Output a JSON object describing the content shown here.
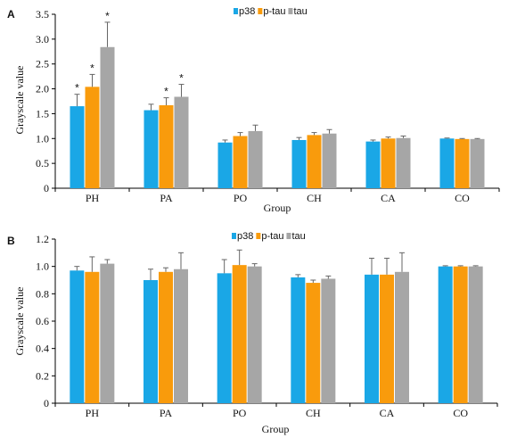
{
  "chart_data": [
    {
      "type": "bar",
      "panel_label": "A",
      "xlabel": "Group",
      "ylabel": "Grayscale value",
      "ylim": [
        0,
        3.5
      ],
      "yticks": [
        "0",
        "0.5",
        "1.0",
        "1.5",
        "2.0",
        "2.5",
        "3.0",
        "3.5"
      ],
      "ytick_values": [
        0,
        0.5,
        1.0,
        1.5,
        2.0,
        2.5,
        3.0,
        3.5
      ],
      "categories": [
        "PH",
        "PA",
        "PO",
        "CH",
        "CA",
        "CO"
      ],
      "legend_position": "top-center",
      "series": [
        {
          "name": "p38",
          "color": "#1aa7e6",
          "values": [
            1.65,
            1.57,
            0.92,
            0.97,
            0.94,
            1.0
          ],
          "errors": [
            0.24,
            0.12,
            0.05,
            0.05,
            0.03,
            0.01
          ],
          "significance": [
            "*",
            "",
            "",
            "",
            "",
            ""
          ]
        },
        {
          "name": "p-tau",
          "color": "#f99b0c",
          "values": [
            2.04,
            1.67,
            1.05,
            1.07,
            1.0,
            0.99
          ],
          "errors": [
            0.25,
            0.15,
            0.07,
            0.05,
            0.03,
            0.01
          ],
          "significance": [
            "*",
            "*",
            "",
            "",
            "",
            ""
          ]
        },
        {
          "name": "tau",
          "color": "#a6a6a6",
          "values": [
            2.84,
            1.84,
            1.15,
            1.1,
            1.01,
            0.99
          ],
          "errors": [
            0.5,
            0.25,
            0.12,
            0.08,
            0.04,
            0.01
          ],
          "significance": [
            "*",
            "*",
            "",
            "",
            "",
            ""
          ]
        }
      ]
    },
    {
      "type": "bar",
      "panel_label": "B",
      "xlabel": "Group",
      "ylabel": "Grayscale value",
      "ylim": [
        0,
        1.2
      ],
      "yticks": [
        "0",
        "0.2",
        "0.4",
        "0.6",
        "0.8",
        "1.0",
        "1.2"
      ],
      "ytick_values": [
        0,
        0.2,
        0.4,
        0.6,
        0.8,
        1.0,
        1.2
      ],
      "categories": [
        "PH",
        "PA",
        "PO",
        "CH",
        "CA",
        "CO"
      ],
      "legend_position": "top-center",
      "series": [
        {
          "name": "p38",
          "color": "#1aa7e6",
          "values": [
            0.97,
            0.9,
            0.95,
            0.92,
            0.94,
            1.0
          ],
          "errors": [
            0.03,
            0.08,
            0.1,
            0.02,
            0.12,
            0.005
          ],
          "significance": [
            "",
            "",
            "",
            "",
            "",
            ""
          ]
        },
        {
          "name": "p-tau",
          "color": "#f99b0c",
          "values": [
            0.96,
            0.96,
            1.01,
            0.88,
            0.94,
            1.0
          ],
          "errors": [
            0.11,
            0.03,
            0.11,
            0.02,
            0.12,
            0.005
          ],
          "significance": [
            "",
            "",
            "",
            "",
            "",
            ""
          ]
        },
        {
          "name": "tau",
          "color": "#a6a6a6",
          "values": [
            1.02,
            0.98,
            1.0,
            0.91,
            0.96,
            1.0
          ],
          "errors": [
            0.03,
            0.12,
            0.02,
            0.02,
            0.14,
            0.005
          ],
          "significance": [
            "",
            "",
            "",
            "",
            "",
            ""
          ]
        }
      ]
    }
  ]
}
